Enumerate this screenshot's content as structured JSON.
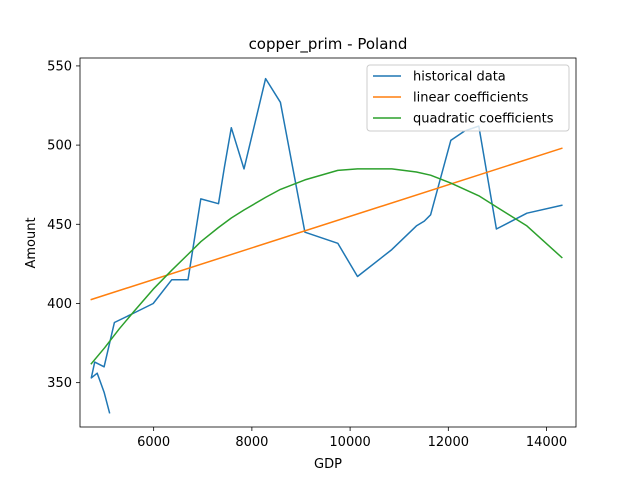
{
  "chart_data": {
    "type": "line",
    "title": "copper_prim - Poland",
    "xlabel": "GDP",
    "ylabel": "Amount",
    "xlim": [
      4500,
      14600
    ],
    "ylim": [
      322,
      555
    ],
    "xticks": [
      6000,
      8000,
      10000,
      12000,
      14000
    ],
    "xtick_labels": [
      "6000",
      "8000",
      "10000",
      "12000",
      "14000"
    ],
    "yticks": [
      350,
      400,
      450,
      500,
      550
    ],
    "ytick_labels": [
      "350",
      "400",
      "450",
      "500",
      "550"
    ],
    "grid": false,
    "legend_position": "upper right",
    "series": [
      {
        "name": "historical data",
        "color": "#1f77b4",
        "x": [
          5100,
          4990,
          4850,
          4730,
          4800,
          4990,
          5200,
          5600,
          5990,
          6370,
          6700,
          6960,
          7320,
          7440,
          7580,
          7840,
          8280,
          8580,
          9080,
          9750,
          10150,
          10850,
          11350,
          11510,
          11640,
          12050,
          12340,
          12620,
          12980,
          13600,
          14310
        ],
        "y": [
          331,
          344,
          356,
          353,
          363,
          360,
          388,
          394,
          400,
          415,
          415,
          466,
          463,
          486,
          511,
          485,
          542,
          527,
          445,
          438,
          417,
          434,
          449,
          452,
          456,
          503,
          509,
          512,
          447,
          457,
          462
        ]
      },
      {
        "name": "linear coefficients",
        "color": "#ff7f0e",
        "x": [
          4730,
          14310
        ],
        "y": [
          402.5,
          498
        ]
      },
      {
        "name": "quadratic coefficients",
        "color": "#2ca02c",
        "x": [
          4730,
          5000,
          5300,
          5600,
          5990,
          6370,
          6700,
          6960,
          7320,
          7580,
          7840,
          8280,
          8580,
          9080,
          9750,
          10150,
          10850,
          11350,
          11640,
          12050,
          12620,
          12980,
          13600,
          14310
        ],
        "y": [
          362,
          372,
          384,
          395,
          409,
          421,
          431,
          439,
          448,
          454,
          459,
          467,
          472,
          478,
          484,
          485,
          485,
          483,
          481,
          476,
          468,
          461,
          449,
          429
        ]
      }
    ]
  }
}
